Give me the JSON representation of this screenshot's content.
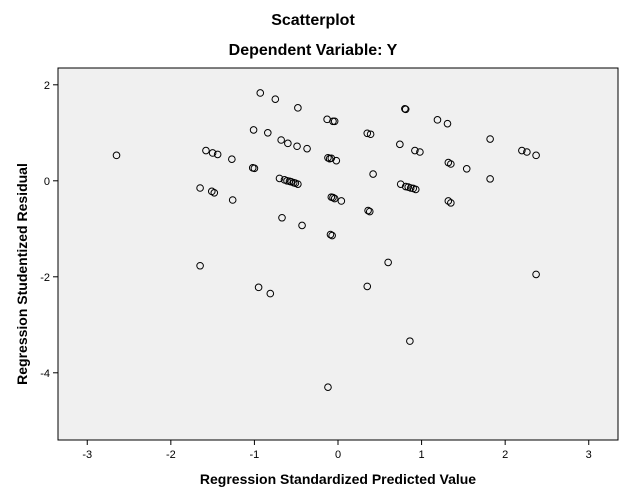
{
  "chart_data": {
    "type": "scatter",
    "title": "Scatterplot",
    "subtitle": "Dependent Variable: Y",
    "xlabel": "Regression Standardized Predicted Value",
    "ylabel": "Regression Studentized Residual",
    "xlim": [
      -3.35,
      3.35
    ],
    "ylim": [
      -5.4,
      2.35
    ],
    "xticks": [
      -3,
      -2,
      -1,
      0,
      1,
      2,
      3
    ],
    "yticks": [
      -4,
      -2,
      0,
      2
    ],
    "grid": false,
    "legend": "none",
    "plot_background": "#f0f0f0",
    "marker_color": "#000000",
    "points": [
      {
        "x": -2.65,
        "y": 0.53
      },
      {
        "x": -1.58,
        "y": 0.63
      },
      {
        "x": -1.5,
        "y": 0.58
      },
      {
        "x": -1.44,
        "y": 0.55
      },
      {
        "x": -1.27,
        "y": 0.45
      },
      {
        "x": -1.65,
        "y": -0.15
      },
      {
        "x": -1.51,
        "y": -0.22
      },
      {
        "x": -1.48,
        "y": -0.25
      },
      {
        "x": -1.26,
        "y": -0.4
      },
      {
        "x": -1.65,
        "y": -1.77
      },
      {
        "x": -0.93,
        "y": 1.83
      },
      {
        "x": -0.75,
        "y": 1.7
      },
      {
        "x": -0.48,
        "y": 1.52
      },
      {
        "x": -1.01,
        "y": 1.06
      },
      {
        "x": -0.84,
        "y": 1.0
      },
      {
        "x": -0.68,
        "y": 0.85
      },
      {
        "x": -0.6,
        "y": 0.78
      },
      {
        "x": -0.49,
        "y": 0.72
      },
      {
        "x": -0.37,
        "y": 0.67
      },
      {
        "x": -1.02,
        "y": 0.27
      },
      {
        "x": -1.0,
        "y": 0.26
      },
      {
        "x": -0.7,
        "y": 0.05
      },
      {
        "x": -0.64,
        "y": 0.02
      },
      {
        "x": -0.61,
        "y": 0.0
      },
      {
        "x": -0.58,
        "y": -0.01
      },
      {
        "x": -0.56,
        "y": -0.02
      },
      {
        "x": -0.53,
        "y": -0.04
      },
      {
        "x": -0.51,
        "y": -0.05
      },
      {
        "x": -0.48,
        "y": -0.07
      },
      {
        "x": -0.67,
        "y": -0.77
      },
      {
        "x": -0.43,
        "y": -0.93
      },
      {
        "x": -0.95,
        "y": -2.22
      },
      {
        "x": -0.81,
        "y": -2.35
      },
      {
        "x": -0.13,
        "y": 1.28
      },
      {
        "x": -0.06,
        "y": 1.24
      },
      {
        "x": -0.04,
        "y": 1.24
      },
      {
        "x": -0.12,
        "y": 0.48
      },
      {
        "x": -0.08,
        "y": 0.47
      },
      {
        "x": -0.1,
        "y": 0.46
      },
      {
        "x": -0.02,
        "y": 0.42
      },
      {
        "x": -0.08,
        "y": -0.34
      },
      {
        "x": -0.06,
        "y": -0.35
      },
      {
        "x": -0.04,
        "y": -0.37
      },
      {
        "x": 0.04,
        "y": -0.42
      },
      {
        "x": -0.09,
        "y": -1.12
      },
      {
        "x": -0.07,
        "y": -1.14
      },
      {
        "x": -0.12,
        "y": -4.3
      },
      {
        "x": 0.35,
        "y": 0.99
      },
      {
        "x": 0.39,
        "y": 0.97
      },
      {
        "x": 0.42,
        "y": 0.14
      },
      {
        "x": 0.36,
        "y": -0.62
      },
      {
        "x": 0.38,
        "y": -0.64
      },
      {
        "x": 0.6,
        "y": -1.7
      },
      {
        "x": 0.35,
        "y": -2.2
      },
      {
        "x": 0.8,
        "y": 1.5
      },
      {
        "x": 0.81,
        "y": 1.49
      },
      {
        "x": 0.74,
        "y": 0.76
      },
      {
        "x": 0.92,
        "y": 0.63
      },
      {
        "x": 0.98,
        "y": 0.6
      },
      {
        "x": 0.75,
        "y": -0.07
      },
      {
        "x": 0.81,
        "y": -0.12
      },
      {
        "x": 0.84,
        "y": -0.13
      },
      {
        "x": 0.87,
        "y": -0.15
      },
      {
        "x": 0.9,
        "y": -0.16
      },
      {
        "x": 0.93,
        "y": -0.18
      },
      {
        "x": 0.86,
        "y": -3.34
      },
      {
        "x": 1.19,
        "y": 1.27
      },
      {
        "x": 1.31,
        "y": 1.19
      },
      {
        "x": 1.32,
        "y": 0.38
      },
      {
        "x": 1.35,
        "y": 0.35
      },
      {
        "x": 1.54,
        "y": 0.25
      },
      {
        "x": 1.32,
        "y": -0.42
      },
      {
        "x": 1.35,
        "y": -0.46
      },
      {
        "x": 1.82,
        "y": 0.87
      },
      {
        "x": 1.82,
        "y": 0.04
      },
      {
        "x": 2.2,
        "y": 0.63
      },
      {
        "x": 2.26,
        "y": 0.6
      },
      {
        "x": 2.37,
        "y": 0.53
      },
      {
        "x": 2.37,
        "y": -1.95
      }
    ]
  }
}
